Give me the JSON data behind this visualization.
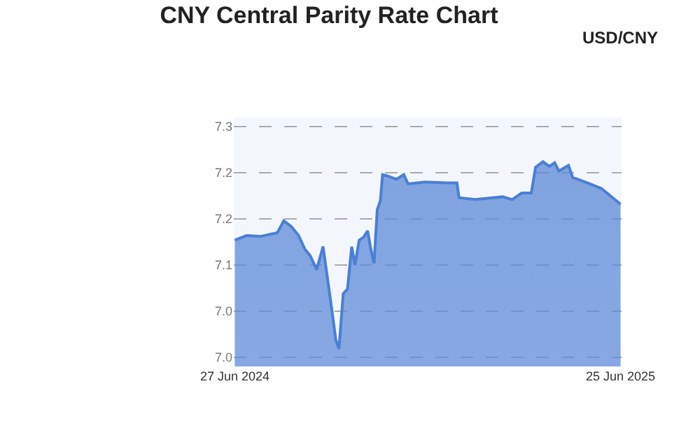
{
  "chart_data": {
    "type": "area",
    "title": "CNY Central Parity Rate Chart",
    "subtitle": "USD/CNY",
    "x": [
      "2024-06-27",
      "2024-07-08",
      "2024-07-21",
      "2024-08-06",
      "2024-08-12",
      "2024-08-19",
      "2024-08-26",
      "2024-09-01",
      "2024-09-06",
      "2024-09-12",
      "2024-09-18",
      "2024-09-26",
      "2024-09-30",
      "2024-10-03",
      "2024-10-07",
      "2024-10-11",
      "2024-10-15",
      "2024-10-18",
      "2024-10-22",
      "2024-10-26",
      "2024-10-30",
      "2024-11-02",
      "2024-11-05",
      "2024-11-08",
      "2024-11-11",
      "2024-11-13",
      "2024-11-17",
      "2024-11-26",
      "2024-12-03",
      "2024-12-07",
      "2024-12-23",
      "2025-01-13",
      "2025-01-22",
      "2025-01-24",
      "2025-02-08",
      "2025-03-06",
      "2025-03-15",
      "2025-03-24",
      "2025-04-02",
      "2025-04-06",
      "2025-04-13",
      "2025-04-19",
      "2025-04-24",
      "2025-04-28",
      "2025-05-07",
      "2025-05-11",
      "2025-05-25",
      "2025-06-07",
      "2025-06-25"
    ],
    "series": [
      {
        "color": "#4a7fd4",
        "values": [
          7.127,
          7.132,
          7.131,
          7.135,
          7.148,
          7.142,
          7.132,
          7.117,
          7.11,
          7.095,
          7.12,
          7.054,
          7.019,
          7.009,
          7.069,
          7.074,
          7.12,
          7.1,
          7.127,
          7.13,
          7.137,
          7.117,
          7.102,
          7.16,
          7.17,
          7.198,
          7.197,
          7.193,
          7.198,
          7.188,
          7.19,
          7.189,
          7.189,
          7.173,
          7.171,
          7.174,
          7.171,
          7.178,
          7.178,
          7.206,
          7.212,
          7.207,
          7.211,
          7.202,
          7.208,
          7.195,
          7.189,
          7.183,
          7.166
        ]
      }
    ],
    "xlim": [
      "2024-06-26",
      "2025-06-26"
    ],
    "xticks": [
      {
        "value": "2024-06-27",
        "label": "27 Jun 2024"
      },
      {
        "value": "2025-06-25",
        "label": "25 Jun 2025"
      }
    ],
    "ylim": [
      6.99,
      7.26
    ],
    "yticks": [
      {
        "value": 7.0,
        "label": "7.0"
      },
      {
        "value": 7.05,
        "label": "7.0"
      },
      {
        "value": 7.1,
        "label": "7.1"
      },
      {
        "value": 7.15,
        "label": "7.2"
      },
      {
        "value": 7.2,
        "label": "7.2"
      },
      {
        "value": 7.25,
        "label": "7.3"
      }
    ],
    "grid": "y",
    "marker": "none",
    "line_style": "solid"
  }
}
